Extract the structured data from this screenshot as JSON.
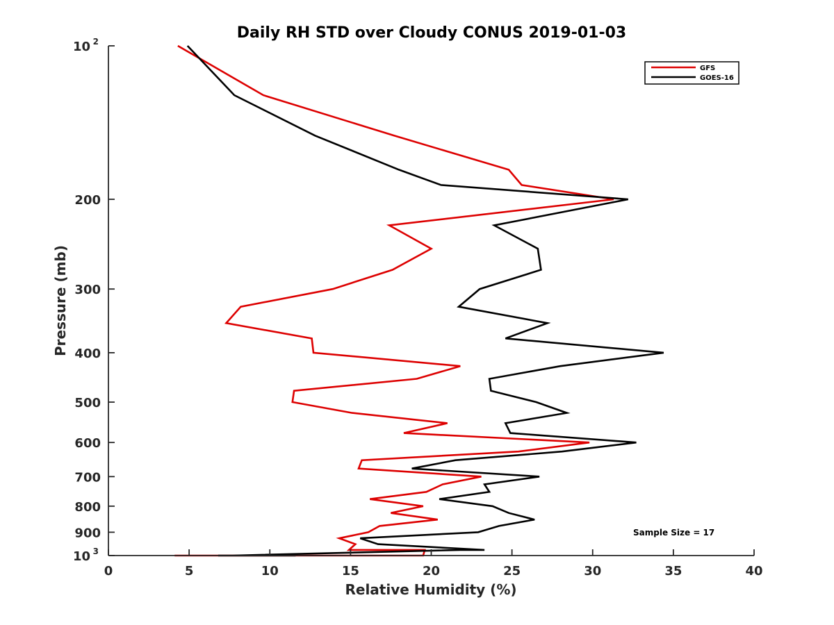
{
  "chart_data": {
    "type": "line",
    "title": "Daily RH STD over Cloudy CONUS 2019-01-03",
    "xlabel": "Relative Humidity (%)",
    "ylabel": "Pressure (mb)",
    "xlim": [
      0,
      40
    ],
    "ylim": [
      100,
      1000
    ],
    "y_scale": "log",
    "y_reversed": true,
    "grid": false,
    "x_ticks": [
      "0",
      "5",
      "10",
      "15",
      "20",
      "25",
      "30",
      "35",
      "40"
    ],
    "y_ticks": [
      {
        "value": 100,
        "base": "10",
        "exp": "2"
      },
      {
        "value": 200,
        "label": "200"
      },
      {
        "value": 300,
        "label": "300"
      },
      {
        "value": 400,
        "label": "400"
      },
      {
        "value": 500,
        "label": "500"
      },
      {
        "value": 600,
        "label": "600"
      },
      {
        "value": 700,
        "label": "700"
      },
      {
        "value": 800,
        "label": "800"
      },
      {
        "value": 900,
        "label": "900"
      },
      {
        "value": 1000,
        "base": "10",
        "exp": "3"
      }
    ],
    "legend_position": "top-right",
    "annotation": "Sample Size = 17",
    "series": [
      {
        "name": "GFS",
        "color": "#dd0000",
        "points": [
          [
            4.3,
            100
          ],
          [
            9.6,
            125
          ],
          [
            17.7,
            150
          ],
          [
            24.8,
            175
          ],
          [
            25.6,
            187.5
          ],
          [
            31.3,
            200
          ],
          [
            17.4,
            225
          ],
          [
            20.0,
            250
          ],
          [
            17.6,
            275
          ],
          [
            13.9,
            300
          ],
          [
            8.2,
            325
          ],
          [
            7.3,
            350
          ],
          [
            12.6,
            375
          ],
          [
            12.7,
            400
          ],
          [
            21.8,
            425
          ],
          [
            19.1,
            450
          ],
          [
            11.5,
            475
          ],
          [
            11.4,
            500
          ],
          [
            15.1,
            525
          ],
          [
            21.0,
            550
          ],
          [
            18.3,
            575
          ],
          [
            29.8,
            600
          ],
          [
            25.4,
            625
          ],
          [
            15.7,
            650
          ],
          [
            15.5,
            675
          ],
          [
            23.1,
            700
          ],
          [
            20.7,
            725
          ],
          [
            19.7,
            750
          ],
          [
            16.2,
            775
          ],
          [
            19.5,
            800
          ],
          [
            17.5,
            825
          ],
          [
            20.4,
            850
          ],
          [
            16.8,
            875
          ],
          [
            16.1,
            900
          ],
          [
            14.3,
            925
          ],
          [
            15.3,
            950
          ],
          [
            14.9,
            975
          ],
          [
            19.6,
            975
          ],
          [
            19.5,
            1000
          ],
          [
            7.6,
            1000
          ],
          [
            10.4,
            1000
          ],
          [
            10.5,
            1000
          ],
          [
            10.1,
            1000
          ],
          [
            6.2,
            1000
          ],
          [
            4.1,
            1000
          ]
        ]
      },
      {
        "name": "GOES-16",
        "color": "#000000",
        "points": [
          [
            4.9,
            100
          ],
          [
            7.8,
            125
          ],
          [
            12.8,
            150
          ],
          [
            18.0,
            175
          ],
          [
            20.6,
            187.5
          ],
          [
            32.2,
            200
          ],
          [
            23.9,
            225
          ],
          [
            26.6,
            250
          ],
          [
            26.8,
            275
          ],
          [
            23.0,
            300
          ],
          [
            21.7,
            325
          ],
          [
            27.2,
            350
          ],
          [
            24.6,
            375
          ],
          [
            34.4,
            400
          ],
          [
            28.0,
            425
          ],
          [
            23.6,
            450
          ],
          [
            23.7,
            475
          ],
          [
            26.5,
            500
          ],
          [
            28.4,
            525
          ],
          [
            24.6,
            550
          ],
          [
            24.9,
            575
          ],
          [
            32.7,
            600
          ],
          [
            28.1,
            625
          ],
          [
            21.5,
            650
          ],
          [
            18.8,
            675
          ],
          [
            26.7,
            700
          ],
          [
            23.3,
            725
          ],
          [
            23.6,
            750
          ],
          [
            20.5,
            775
          ],
          [
            23.8,
            800
          ],
          [
            24.8,
            825
          ],
          [
            26.4,
            850
          ],
          [
            24.2,
            875
          ],
          [
            22.9,
            900
          ],
          [
            15.6,
            925
          ],
          [
            16.7,
            950
          ],
          [
            23.3,
            975
          ],
          [
            21.8,
            975
          ],
          [
            7.7,
            1000
          ],
          [
            11.6,
            1000
          ],
          [
            9.7,
            1000
          ],
          [
            9.7,
            1000
          ],
          [
            7.3,
            1000
          ],
          [
            6.8,
            1000
          ]
        ]
      }
    ]
  }
}
